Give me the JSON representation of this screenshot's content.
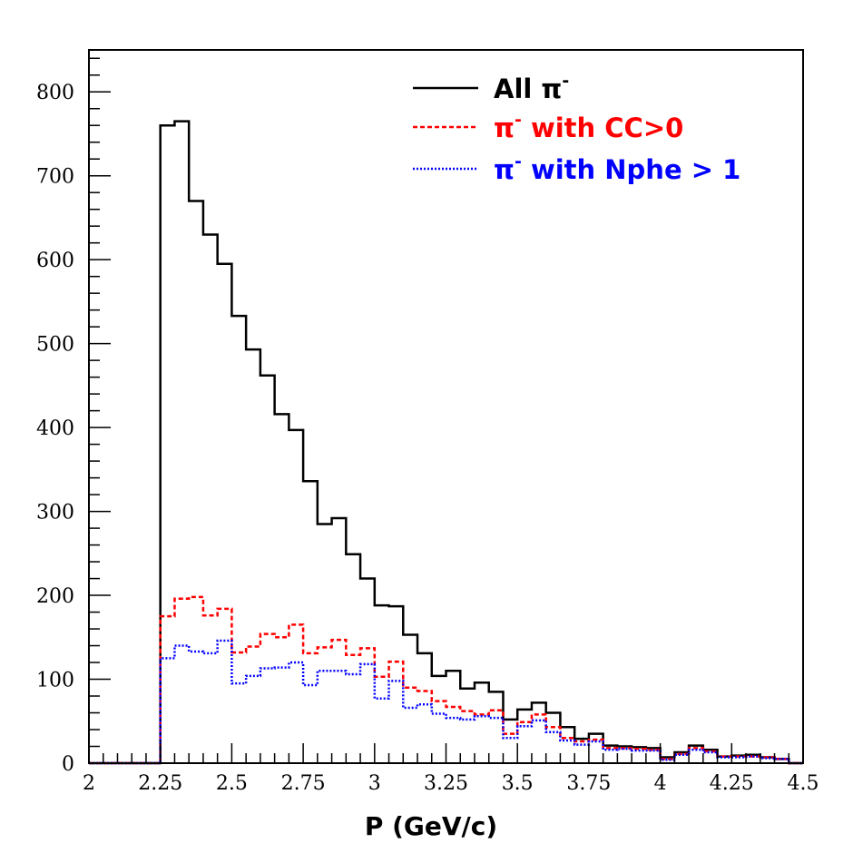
{
  "chart_data": {
    "type": "histogram",
    "xlabel": "P (GeV/c)",
    "ylabel": "",
    "xlim": [
      2.0,
      4.5
    ],
    "ylim": [
      0,
      850
    ],
    "x_ticks": [
      "2",
      "2.25",
      "2.5",
      "2.75",
      "3",
      "3.25",
      "3.5",
      "3.75",
      "4",
      "4.25",
      "4.5"
    ],
    "y_ticks": [
      "0",
      "100",
      "200",
      "300",
      "400",
      "500",
      "600",
      "700",
      "800"
    ],
    "bin_width": 0.05,
    "bin_edges_start": 2.0,
    "legend_position": "top-right",
    "series": [
      {
        "name": "All π⁻",
        "legend_main": "All π",
        "legend_sup": "-",
        "color": "#000000",
        "style": "solid",
        "values": [
          0,
          0,
          0,
          0,
          0,
          760,
          765,
          670,
          630,
          595,
          533,
          493,
          462,
          416,
          397,
          336,
          285,
          292,
          249,
          220,
          188,
          187,
          153,
          131,
          104,
          110,
          89,
          96,
          85,
          52,
          64,
          72,
          60,
          43,
          29,
          35,
          21,
          20,
          19,
          18,
          7,
          13,
          21,
          16,
          8,
          9,
          10,
          7,
          5,
          0
        ]
      },
      {
        "name": "π⁻ with CC>0",
        "legend_main": "π",
        "legend_sup": "-",
        "legend_rest": " with CC>0",
        "color": "#ff0000",
        "style": "dashed",
        "values": [
          0,
          0,
          0,
          0,
          0,
          175,
          196,
          198,
          176,
          184,
          132,
          139,
          154,
          150,
          165,
          131,
          138,
          147,
          129,
          137,
          103,
          121,
          90,
          86,
          74,
          67,
          62,
          58,
          63,
          35,
          49,
          58,
          43,
          30,
          26,
          28,
          18,
          18,
          17,
          16,
          5,
          11,
          18,
          14,
          8,
          8,
          8,
          7,
          5,
          0
        ]
      },
      {
        "name": "π⁻ with Nphe > 1",
        "legend_main": "π",
        "legend_sup": "-",
        "legend_rest": " with Nphe > 1",
        "color": "#0000ff",
        "style": "dotted",
        "values": [
          0,
          0,
          0,
          0,
          0,
          125,
          140,
          133,
          131,
          146,
          95,
          104,
          113,
          114,
          120,
          93,
          110,
          110,
          106,
          118,
          77,
          98,
          66,
          70,
          59,
          54,
          52,
          56,
          54,
          30,
          44,
          51,
          37,
          27,
          22,
          26,
          16,
          17,
          15,
          15,
          4,
          10,
          16,
          13,
          7,
          7,
          8,
          6,
          5,
          0
        ]
      }
    ]
  }
}
